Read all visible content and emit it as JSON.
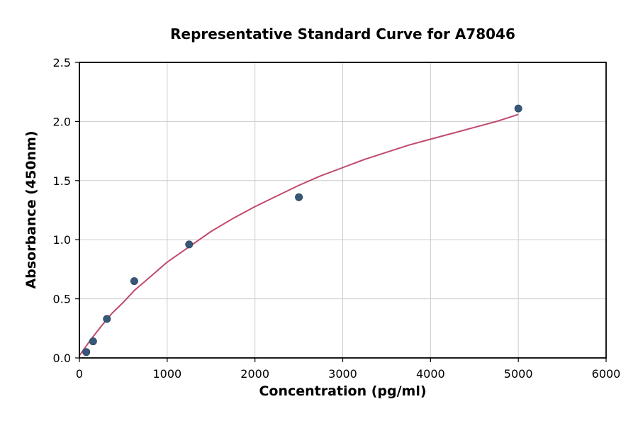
{
  "chart_data": {
    "type": "scatter",
    "title": "Representative Standard Curve for A78046",
    "xlabel": "Concentration (pg/ml)",
    "ylabel": "Absorbance (450nm)",
    "xlim": [
      0,
      6000
    ],
    "ylim": [
      0,
      2.5
    ],
    "grid": true,
    "legend": "none",
    "x_ticks": [
      0,
      1000,
      2000,
      3000,
      4000,
      5000,
      6000
    ],
    "x_tick_labels": [
      "0",
      "1000",
      "2000",
      "3000",
      "4000",
      "5000",
      "6000"
    ],
    "y_ticks": [
      0,
      0.5,
      1.0,
      1.5,
      2.0,
      2.5
    ],
    "y_tick_labels": [
      "0.0",
      "0.5",
      "1.0",
      "1.5",
      "2.0",
      "2.5"
    ],
    "points": {
      "x": [
        78,
        156,
        313,
        625,
        1250,
        2500,
        5000
      ],
      "y": [
        0.05,
        0.14,
        0.33,
        0.65,
        0.96,
        1.36,
        2.11
      ]
    },
    "fit_curve": {
      "x": [
        0,
        125,
        250,
        375,
        500,
        625,
        750,
        875,
        1000,
        1250,
        1500,
        1750,
        2000,
        2250,
        2500,
        2750,
        3000,
        3250,
        3500,
        3750,
        4000,
        4250,
        4500,
        4750,
        5000
      ],
      "y": [
        0.02,
        0.15,
        0.27,
        0.38,
        0.47,
        0.57,
        0.65,
        0.73,
        0.81,
        0.94,
        1.07,
        1.18,
        1.28,
        1.37,
        1.46,
        1.54,
        1.61,
        1.68,
        1.74,
        1.8,
        1.85,
        1.9,
        1.95,
        2.0,
        2.06
      ]
    },
    "colors": {
      "point": "#38587a",
      "point_edge": "#2d4a63",
      "curve": "#c04a6b",
      "grid": "#cccccc",
      "axis": "#000000"
    }
  }
}
